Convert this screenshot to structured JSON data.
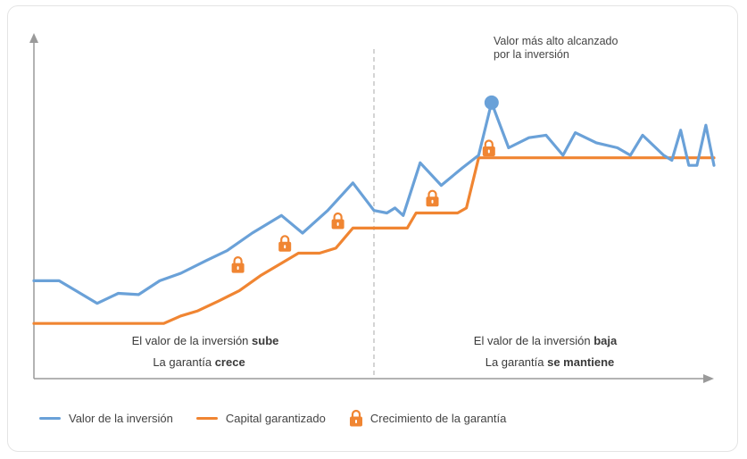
{
  "colors": {
    "investment": "#6aa1d8",
    "guarantee": "#f08532",
    "axis": "#9a9a9a",
    "divider": "#b8b8b8"
  },
  "annotation": {
    "line1": "Valor más alto alcanzado",
    "line2": "por la inversión"
  },
  "regions": {
    "left": {
      "line1_pre": "El valor de la inversión ",
      "line1_bold": "sube",
      "line2_pre": "La garantía ",
      "line2_bold": "crece"
    },
    "right": {
      "line1_pre": "El valor de la inversión ",
      "line1_bold": "baja",
      "line2_pre": "La garantía ",
      "line2_bold": "se mantiene"
    }
  },
  "legend": {
    "investment": "Valor de la inversión",
    "guarantee": "Capital garantizado",
    "lock": "Crecimiento de la garantía"
  },
  "chart_data": {
    "type": "line",
    "xlim": [
      0,
      100
    ],
    "ylim": [
      0,
      100
    ],
    "divider_x": 50,
    "series": [
      {
        "name": "Valor de la inversión",
        "color": "#6aa1d8",
        "points": [
          [
            0,
            39
          ],
          [
            3.7,
            39
          ],
          [
            6.2,
            35
          ],
          [
            9.3,
            30
          ],
          [
            12.4,
            34
          ],
          [
            15.4,
            33.5
          ],
          [
            18.5,
            39
          ],
          [
            21.6,
            42
          ],
          [
            25.3,
            47
          ],
          [
            28.4,
            51
          ],
          [
            32.1,
            58
          ],
          [
            36.4,
            65
          ],
          [
            39.5,
            58
          ],
          [
            43.2,
            67
          ],
          [
            46.9,
            78
          ],
          [
            50,
            67
          ],
          [
            51.9,
            66
          ],
          [
            53.1,
            68
          ],
          [
            54.3,
            65
          ],
          [
            56.8,
            86
          ],
          [
            59.9,
            77
          ],
          [
            63,
            84
          ],
          [
            65.4,
            89
          ],
          [
            67.3,
            110
          ],
          [
            69.8,
            92
          ],
          [
            72.8,
            96
          ],
          [
            75.3,
            97
          ],
          [
            77.8,
            89
          ],
          [
            79.6,
            98
          ],
          [
            82.7,
            94
          ],
          [
            85.8,
            92
          ],
          [
            87.7,
            89
          ],
          [
            89.5,
            97
          ],
          [
            92.6,
            89
          ],
          [
            93.8,
            87
          ],
          [
            95.1,
            99
          ],
          [
            96.3,
            85
          ],
          [
            97.5,
            85
          ],
          [
            98.8,
            101
          ],
          [
            100,
            85
          ]
        ]
      },
      {
        "name": "Capital garantizado",
        "color": "#f08532",
        "points": [
          [
            0,
            22
          ],
          [
            19.1,
            22
          ],
          [
            21.6,
            25
          ],
          [
            24.1,
            27
          ],
          [
            27.2,
            31
          ],
          [
            30.2,
            35
          ],
          [
            33.3,
            41
          ],
          [
            36.4,
            46
          ],
          [
            38.9,
            50
          ],
          [
            42,
            50
          ],
          [
            44.4,
            52
          ],
          [
            46.9,
            60
          ],
          [
            50,
            60
          ],
          [
            50,
            60
          ],
          [
            51.9,
            60
          ],
          [
            54.9,
            60
          ],
          [
            56.2,
            66
          ],
          [
            62.3,
            66
          ],
          [
            63.6,
            68
          ],
          [
            65.4,
            88
          ],
          [
            100,
            88
          ]
        ]
      }
    ],
    "highlight": {
      "x": 67.3,
      "y": 110,
      "label": "Valor más alto alcanzado por la inversión"
    },
    "locks": [
      [
        30,
        45.5
      ],
      [
        36.9,
        54
      ],
      [
        44.7,
        63
      ],
      [
        58.6,
        72
      ],
      [
        66.9,
        92
      ]
    ]
  }
}
